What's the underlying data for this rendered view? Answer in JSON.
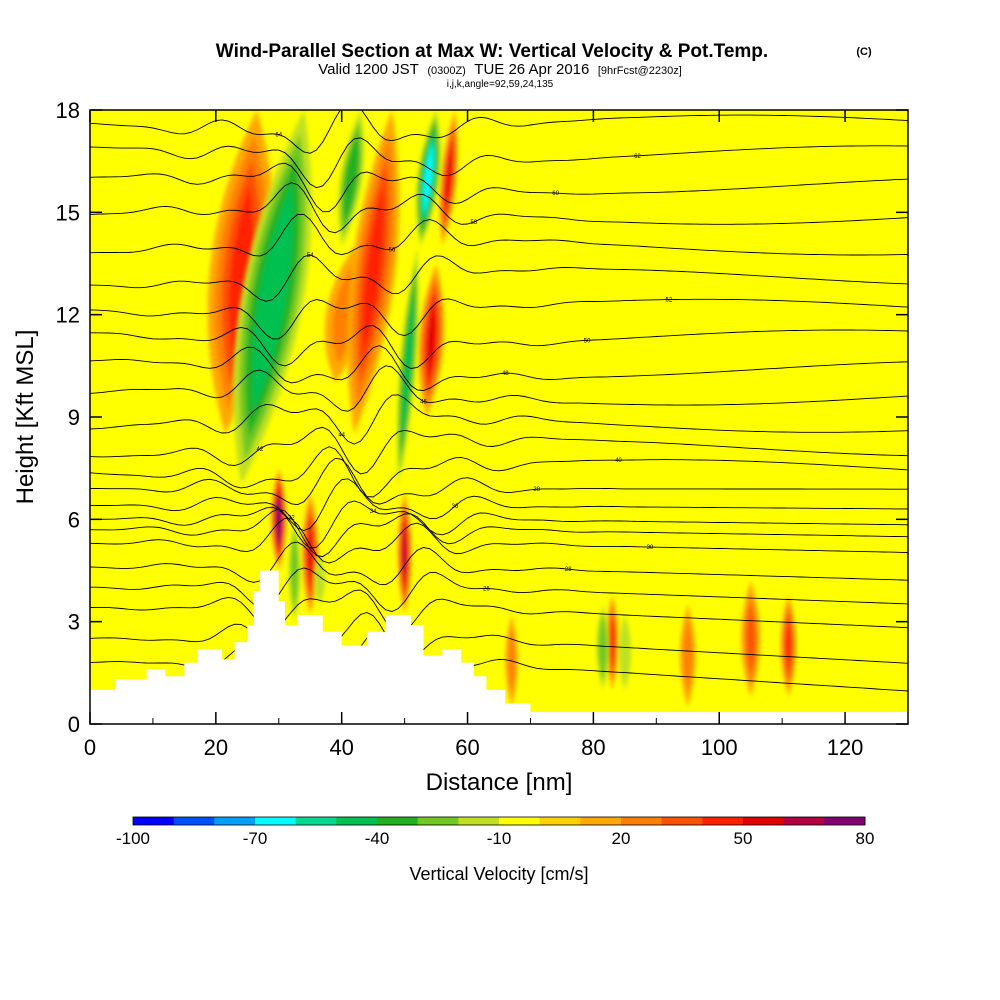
{
  "chart_data": {
    "type": "heatmap",
    "title": "Wind-Parallel Section at Max W: Vertical Velocity & Pot.Temp.",
    "copyright": "(C)",
    "subtitle_parts": {
      "valid": "Valid 1200 JST",
      "zulu": "(0300Z)",
      "date": "TUE 26 Apr 2016",
      "forecast": "[9hrFcst@2230z]"
    },
    "params_line": "i,j,k,angle=92,59,24,135",
    "xlabel": "Distance [nm]",
    "ylabel": "Height [Kft MSL]",
    "xlim": [
      0,
      130
    ],
    "ylim": [
      0,
      18
    ],
    "x_ticks": [
      0,
      20,
      40,
      60,
      80,
      100,
      120
    ],
    "y_ticks": [
      0,
      3,
      6,
      9,
      12,
      15,
      18
    ],
    "background_value": -5,
    "colorbar": {
      "label": "Vertical Velocity [cm/s]",
      "min": -100,
      "max": 80,
      "step": 10,
      "tick_labels": [
        "-100",
        "-70",
        "-40",
        "-10",
        "20",
        "50",
        "80"
      ],
      "colors": [
        "#0000ff",
        "#0050ff",
        "#00a0ff",
        "#00ffff",
        "#00d890",
        "#00c050",
        "#22b020",
        "#70c820",
        "#c0e020",
        "#ffff00",
        "#ffd000",
        "#ffa800",
        "#ff8000",
        "#ff5000",
        "#ff2000",
        "#e00000",
        "#b00040",
        "#800070"
      ]
    },
    "terrain": [
      [
        0,
        1.0
      ],
      [
        4,
        1.0
      ],
      [
        4,
        1.3
      ],
      [
        9,
        1.3
      ],
      [
        9,
        1.6
      ],
      [
        12,
        1.6
      ],
      [
        12,
        1.4
      ],
      [
        15,
        1.4
      ],
      [
        15,
        1.8
      ],
      [
        17,
        1.8
      ],
      [
        17,
        2.2
      ],
      [
        21,
        2.2
      ],
      [
        21,
        1.9
      ],
      [
        23,
        1.9
      ],
      [
        23,
        2.4
      ],
      [
        25,
        2.4
      ],
      [
        25,
        2.9
      ],
      [
        26,
        2.9
      ],
      [
        26,
        3.9
      ],
      [
        27,
        3.9
      ],
      [
        27,
        4.5
      ],
      [
        30,
        4.5
      ],
      [
        30,
        3.6
      ],
      [
        31,
        3.6
      ],
      [
        31,
        2.9
      ],
      [
        33,
        2.9
      ],
      [
        33,
        3.2
      ],
      [
        37,
        3.2
      ],
      [
        37,
        2.7
      ],
      [
        40,
        2.7
      ],
      [
        40,
        2.3
      ],
      [
        44,
        2.3
      ],
      [
        44,
        2.7
      ],
      [
        47,
        2.7
      ],
      [
        47,
        3.2
      ],
      [
        51,
        3.2
      ],
      [
        51,
        2.9
      ],
      [
        53,
        2.9
      ],
      [
        53,
        2.0
      ],
      [
        56,
        2.0
      ],
      [
        56,
        2.2
      ],
      [
        59,
        2.2
      ],
      [
        59,
        1.8
      ],
      [
        61,
        1.8
      ],
      [
        61,
        1.4
      ],
      [
        63,
        1.4
      ],
      [
        63,
        1.0
      ],
      [
        66,
        1.0
      ],
      [
        66,
        0.6
      ],
      [
        70,
        0.6
      ],
      [
        70,
        0.35
      ],
      [
        130,
        0.35
      ]
    ],
    "updraft_bands": [
      {
        "x0": 21.5,
        "x1": 26.5,
        "ybot": 8.5,
        "ytop": 18,
        "w": 10,
        "value": 45
      },
      {
        "x0": 30,
        "x1": 30,
        "ybot": 4.5,
        "ytop": 7.5,
        "w": 2.4,
        "value": 80
      },
      {
        "x0": 35,
        "x1": 35,
        "ybot": 3.2,
        "ytop": 6.8,
        "w": 2.6,
        "value": 50
      },
      {
        "x0": 39,
        "x1": 42,
        "ybot": 10,
        "ytop": 14,
        "w": 6,
        "value": 20
      },
      {
        "x0": 42,
        "x1": 48,
        "ybot": 8.5,
        "ytop": 18,
        "w": 7,
        "value": 40
      },
      {
        "x0": 50,
        "x1": 50,
        "ybot": 3.2,
        "ytop": 6.8,
        "w": 2.2,
        "value": 60
      },
      {
        "x0": 53.5,
        "x1": 55,
        "ybot": 9,
        "ytop": 13.5,
        "w": 4,
        "value": 55
      },
      {
        "x0": 56,
        "x1": 58,
        "ybot": 14,
        "ytop": 18,
        "w": 2.5,
        "value": 50
      },
      {
        "x0": 83,
        "x1": 83,
        "ybot": 1,
        "ytop": 3.8,
        "w": 2,
        "value": 40
      },
      {
        "x0": 105,
        "x1": 105,
        "ybot": 0.8,
        "ytop": 4.2,
        "w": 3,
        "value": 30
      },
      {
        "x0": 111,
        "x1": 111,
        "ybot": 0.8,
        "ytop": 3.8,
        "w": 2.5,
        "value": 40
      },
      {
        "x0": 67,
        "x1": 67,
        "ybot": 0.5,
        "ytop": 3.2,
        "w": 2,
        "value": 20
      },
      {
        "x0": 95,
        "x1": 95,
        "ybot": 0.5,
        "ytop": 3.5,
        "w": 2.5,
        "value": 20
      }
    ],
    "downdraft_bands": [
      {
        "x0": 24,
        "x1": 34,
        "ybot": 7,
        "ytop": 18,
        "w": 10,
        "value": -50
      },
      {
        "x0": 40,
        "x1": 43,
        "ybot": 14,
        "ytop": 18,
        "w": 3.5,
        "value": -40
      },
      {
        "x0": 49,
        "x1": 52,
        "ybot": 7,
        "ytop": 14,
        "w": 2.5,
        "value": -50
      },
      {
        "x0": 52.5,
        "x1": 55,
        "ybot": 14,
        "ytop": 18,
        "w": 3.5,
        "value": -70
      },
      {
        "x0": 32.5,
        "x1": 32.5,
        "ybot": 3,
        "ytop": 6,
        "w": 1.8,
        "value": -30
      },
      {
        "x0": 36.5,
        "x1": 36.5,
        "ybot": 3.5,
        "ytop": 5,
        "w": 1.8,
        "value": -20
      },
      {
        "x0": 81.5,
        "x1": 81.5,
        "ybot": 1,
        "ytop": 3.5,
        "w": 2,
        "value": -30
      },
      {
        "x0": 85,
        "x1": 85,
        "ybot": 1,
        "ytop": 3.2,
        "w": 2,
        "value": -20
      }
    ],
    "isentropes": [
      {
        "base": 1.8,
        "label": "20"
      },
      {
        "base": 2.5,
        "label": "22"
      },
      {
        "base": 3.4,
        "label": "24"
      },
      {
        "base": 4.0,
        "label": "26"
      },
      {
        "base": 4.6,
        "label": "28"
      },
      {
        "base": 5.3,
        "label": "30"
      },
      {
        "base": 5.7,
        "label": "32"
      },
      {
        "base": 6.0,
        "label": "34"
      },
      {
        "base": 6.4,
        "label": "36"
      },
      {
        "base": 6.9,
        "label": "38"
      },
      {
        "base": 7.5,
        "label": "40"
      },
      {
        "base": 8.1,
        "label": "42"
      },
      {
        "base": 8.8,
        "label": "44"
      },
      {
        "base": 9.6,
        "label": "46"
      },
      {
        "base": 10.4,
        "label": "48"
      },
      {
        "base": 11.3,
        "label": "50"
      },
      {
        "base": 12.2,
        "label": "52"
      },
      {
        "base": 13.1,
        "label": "54"
      },
      {
        "base": 14.0,
        "label": "56"
      },
      {
        "base": 14.9,
        "label": "58"
      },
      {
        "base": 15.8,
        "label": "60"
      },
      {
        "base": 16.7,
        "label": "62"
      },
      {
        "base": 17.6,
        "label": "64"
      }
    ]
  }
}
